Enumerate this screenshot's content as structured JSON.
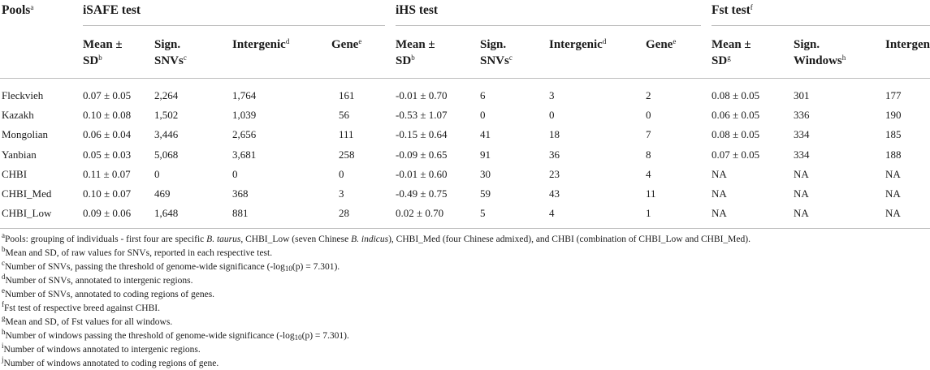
{
  "header": {
    "pools": "Pools",
    "pools_sup": "a",
    "groups": [
      {
        "label": "iSAFE test",
        "sup": ""
      },
      {
        "label": "iHS test",
        "sup": ""
      },
      {
        "label": "Fst test",
        "sup": "f"
      }
    ]
  },
  "subheaders": [
    {
      "l1": "Mean ±",
      "l2": "SD",
      "sup": "b"
    },
    {
      "l1": "Sign.",
      "l2": "SNVs",
      "sup": "c"
    },
    {
      "l1": "Intergenic",
      "l2": "",
      "sup": "d"
    },
    {
      "l1": "Gene",
      "l2": "",
      "sup": "e"
    },
    {
      "l1": "Mean ±",
      "l2": "SD",
      "sup": "b"
    },
    {
      "l1": "Sign.",
      "l2": "SNVs",
      "sup": "c"
    },
    {
      "l1": "Intergenic",
      "l2": "",
      "sup": "d"
    },
    {
      "l1": "Gene",
      "l2": "",
      "sup": "e"
    },
    {
      "l1": "Mean ±",
      "l2": "SD",
      "sup": "g"
    },
    {
      "l1": "Sign.",
      "l2": "Windows",
      "sup": "h"
    },
    {
      "l1": "Intergen",
      "l2": "",
      "sup": ""
    }
  ],
  "rows": [
    {
      "pool": "Fleckvieh",
      "cells": [
        "0.07 ± 0.05",
        "2,264",
        "1,764",
        "161",
        "-0.01 ± 0.70",
        "6",
        "3",
        "2",
        "0.08 ± 0.05",
        "301",
        "177"
      ]
    },
    {
      "pool": "Kazakh",
      "cells": [
        "0.10 ± 0.08",
        "1,502",
        "1,039",
        "56",
        "-0.53 ± 1.07",
        "0",
        "0",
        "0",
        "0.06 ± 0.05",
        "336",
        "190"
      ]
    },
    {
      "pool": "Mongolian",
      "cells": [
        "0.06 ± 0.04",
        "3,446",
        "2,656",
        "111",
        "-0.15 ± 0.64",
        "41",
        "18",
        "7",
        "0.08 ± 0.05",
        "334",
        "185"
      ]
    },
    {
      "pool": "Yanbian",
      "cells": [
        "0.05 ± 0.03",
        "5,068",
        "3,681",
        "258",
        "-0.09 ± 0.65",
        "91",
        "36",
        "8",
        "0.07 ± 0.05",
        "334",
        "188"
      ]
    },
    {
      "pool": "CHBI",
      "cells": [
        "0.11 ± 0.07",
        "0",
        "0",
        "0",
        "-0.01 ± 0.60",
        "30",
        "23",
        "4",
        "NA",
        "NA",
        "NA"
      ]
    },
    {
      "pool": "CHBI_Med",
      "cells": [
        "0.10 ± 0.07",
        "469",
        "368",
        "3",
        "-0.49 ± 0.75",
        "59",
        "43",
        "11",
        "NA",
        "NA",
        "NA"
      ]
    },
    {
      "pool": "CHBI_Low",
      "cells": [
        "0.09 ± 0.06",
        "1,648",
        "881",
        "28",
        "0.02 ± 0.70",
        "5",
        "4",
        "1",
        "NA",
        "NA",
        "NA"
      ]
    }
  ],
  "footnotes": {
    "a": {
      "sup": "a",
      "t1": "Pools: grouping of individuals - first four are specific ",
      "i1": "B. taurus",
      "t2": ", CHBI_Low (seven Chinese ",
      "i2": "B. indicus",
      "t3": "), CHBI_Med (four Chinese admixed), and CHBI (combination of CHBI_Low and CHBI_Med)."
    },
    "b": {
      "sup": "b",
      "text": "Mean and SD, of raw values for SNVs, reported in each respective test."
    },
    "c": {
      "sup": "c",
      "t1": "Number of SNVs, passing the threshold of genome-wide significance (-log",
      "sub": "10",
      "t2": "(p) = 7.301)."
    },
    "d": {
      "sup": "d",
      "text": "Number of SNVs, annotated to intergenic regions."
    },
    "e": {
      "sup": "e",
      "text": "Number of SNVs, annotated to coding regions of genes."
    },
    "f": {
      "sup": "f",
      "text": "Fst test of respective breed against CHBI."
    },
    "g": {
      "sup": "g",
      "text": "Mean and SD, of Fst values for all windows."
    },
    "h": {
      "sup": "h",
      "t1": "Number of windows passing the threshold of genome-wide significance (-log",
      "sub": "10",
      "t2": "(p) = 7.301)."
    },
    "i": {
      "sup": "i",
      "text": "Number of windows annotated to intergenic regions."
    },
    "j": {
      "sup": "j",
      "text": "Number of windows annotated to coding regions of gene."
    }
  }
}
